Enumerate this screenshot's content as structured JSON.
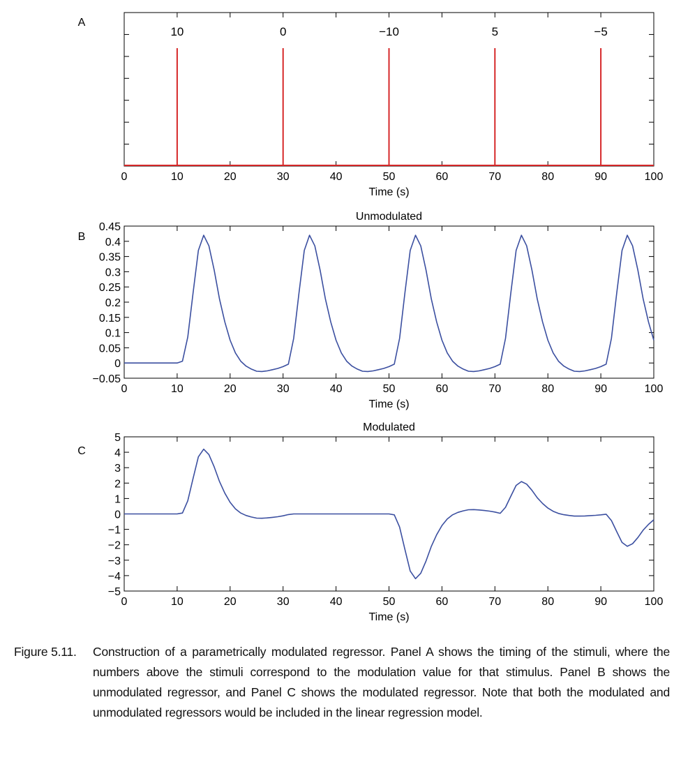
{
  "chart_data": [
    {
      "type": "line",
      "panel_label": "A",
      "title": "",
      "xlabel": "Time (s)",
      "ylabel": "",
      "xlim": [
        0,
        100
      ],
      "x_ticks": [
        "0",
        "10",
        "20",
        "30",
        "40",
        "50",
        "60",
        "70",
        "80",
        "90",
        "100"
      ],
      "y_ticks": [],
      "grid": false,
      "line_color": "#d62728",
      "series": [
        {
          "x": [
            10,
            30,
            50,
            70,
            90
          ],
          "stem_height": 1,
          "labels": [
            "10",
            "0",
            "−10",
            "5",
            "−5"
          ]
        }
      ]
    },
    {
      "type": "line",
      "panel_label": "B",
      "title": "Unmodulated",
      "xlabel": "Time (s)",
      "ylabel": "",
      "xlim": [
        0,
        100
      ],
      "ylim": [
        -0.05,
        0.45
      ],
      "x_ticks": [
        "0",
        "10",
        "20",
        "30",
        "40",
        "50",
        "60",
        "70",
        "80",
        "90",
        "100"
      ],
      "y_ticks": [
        "−0.05",
        "0",
        "0.05",
        "0.1",
        "0.15",
        "0.2",
        "0.25",
        "0.3",
        "0.35",
        "0.4",
        "0.45"
      ],
      "grid": false,
      "line_color": "#3b4fa0",
      "series": [
        {
          "x": [
            0,
            10,
            11,
            12,
            13,
            14,
            15,
            16,
            17,
            18,
            19,
            20,
            21,
            22,
            23,
            24,
            25,
            26,
            27,
            28,
            29,
            30,
            31,
            32,
            33,
            34,
            35,
            36,
            37,
            38,
            39,
            40,
            41,
            42,
            43,
            44,
            45,
            46,
            47,
            48,
            49,
            50,
            51,
            52,
            53,
            54,
            55,
            56,
            57,
            58,
            59,
            60,
            61,
            62,
            63,
            64,
            65,
            66,
            67,
            68,
            69,
            70,
            71,
            72,
            73,
            74,
            75,
            76,
            77,
            78,
            79,
            80,
            81,
            82,
            83,
            84,
            85,
            86,
            87,
            88,
            89,
            90,
            91,
            92,
            93,
            94,
            95,
            96,
            97,
            98,
            99,
            100
          ],
          "y": [
            0,
            0,
            0.006,
            0.085,
            0.23,
            0.37,
            0.42,
            0.385,
            0.305,
            0.21,
            0.135,
            0.075,
            0.033,
            0.006,
            -0.01,
            -0.02,
            -0.027,
            -0.028,
            -0.026,
            -0.022,
            -0.018,
            -0.012,
            -0.004,
            0.081,
            0.23,
            0.37,
            0.42,
            0.385,
            0.305,
            0.21,
            0.135,
            0.075,
            0.033,
            0.006,
            -0.01,
            -0.02,
            -0.027,
            -0.028,
            -0.026,
            -0.022,
            -0.018,
            -0.012,
            -0.004,
            0.081,
            0.23,
            0.37,
            0.42,
            0.385,
            0.305,
            0.21,
            0.135,
            0.075,
            0.033,
            0.006,
            -0.01,
            -0.02,
            -0.027,
            -0.028,
            -0.026,
            -0.022,
            -0.018,
            -0.012,
            -0.004,
            0.081,
            0.23,
            0.37,
            0.42,
            0.385,
            0.305,
            0.21,
            0.135,
            0.075,
            0.033,
            0.006,
            -0.01,
            -0.02,
            -0.027,
            -0.028,
            -0.026,
            -0.022,
            -0.018,
            -0.012,
            -0.004,
            0.081,
            0.23,
            0.37,
            0.42,
            0.385,
            0.305,
            0.21,
            0.135,
            0.075
          ]
        }
      ]
    },
    {
      "type": "line",
      "panel_label": "C",
      "title": "Modulated",
      "xlabel": "Time (s)",
      "ylabel": "",
      "xlim": [
        0,
        100
      ],
      "ylim": [
        -5,
        5
      ],
      "x_ticks": [
        "0",
        "10",
        "20",
        "30",
        "40",
        "50",
        "60",
        "70",
        "80",
        "90",
        "100"
      ],
      "y_ticks": [
        "−5",
        "−4",
        "−3",
        "−2",
        "−1",
        "0",
        "1",
        "2",
        "3",
        "4",
        "5"
      ],
      "grid": false,
      "line_color": "#3b4fa0",
      "series": [
        {
          "x": [
            0,
            10,
            11,
            12,
            13,
            14,
            15,
            16,
            17,
            18,
            19,
            20,
            21,
            22,
            23,
            24,
            25,
            26,
            27,
            28,
            29,
            30,
            31,
            32,
            33,
            34,
            35,
            36,
            37,
            38,
            39,
            40,
            41,
            42,
            43,
            44,
            45,
            46,
            47,
            48,
            49,
            50,
            51,
            52,
            53,
            54,
            55,
            56,
            57,
            58,
            59,
            60,
            61,
            62,
            63,
            64,
            65,
            66,
            67,
            68,
            69,
            70,
            71,
            72,
            73,
            74,
            75,
            76,
            77,
            78,
            79,
            80,
            81,
            82,
            83,
            84,
            85,
            86,
            87,
            88,
            89,
            90,
            91,
            92,
            93,
            94,
            95,
            96,
            97,
            98,
            99,
            100
          ],
          "y": [
            0,
            0,
            0.06,
            0.85,
            2.3,
            3.7,
            4.2,
            3.85,
            3.05,
            2.1,
            1.35,
            0.75,
            0.33,
            0.06,
            -0.1,
            -0.2,
            -0.27,
            -0.28,
            -0.26,
            -0.22,
            -0.18,
            -0.12,
            -0.04,
            0,
            0,
            0,
            0,
            0,
            0,
            0,
            0,
            0,
            0,
            0,
            0,
            0,
            0,
            0,
            0,
            0,
            0,
            0,
            -0.06,
            -0.85,
            -2.3,
            -3.7,
            -4.2,
            -3.85,
            -3.05,
            -2.1,
            -1.35,
            -0.75,
            -0.33,
            -0.06,
            0.1,
            0.2,
            0.27,
            0.28,
            0.26,
            0.22,
            0.18,
            0.12,
            0.04,
            0.43,
            1.15,
            1.85,
            2.1,
            1.93,
            1.53,
            1.05,
            0.68,
            0.38,
            0.17,
            0.03,
            -0.05,
            -0.1,
            -0.14,
            -0.14,
            -0.13,
            -0.11,
            -0.09,
            -0.06,
            -0.02,
            -0.43,
            -1.15,
            -1.85,
            -2.1,
            -1.93,
            -1.53,
            -1.05,
            -0.68,
            -0.38
          ]
        }
      ]
    }
  ],
  "caption": {
    "label": "Figure 5.11.",
    "text": "Construction of a parametrically modulated regressor. Panel A shows the timing of the stimuli, where the numbers above the stimuli correspond to the modulation value for that stimulus. Panel B shows the unmodulated regressor, and Panel C shows the modulated regressor. Note that both the modulated and unmodulated regressors would be included in the linear regression model."
  }
}
